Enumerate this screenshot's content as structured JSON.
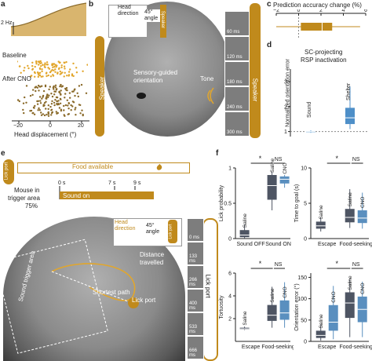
{
  "panels": {
    "a": {
      "letter": "a",
      "stim_label": "2 Hz",
      "baseline_label": "Baseline",
      "after_label": "After CNO",
      "xlabel": "Head displacement (°)",
      "xticks": [
        "−20",
        "0",
        "20"
      ]
    },
    "b": {
      "letter": "b",
      "head_direction": "Head direction",
      "angle": "45° angle",
      "speaker": "Speaker",
      "speaker_left": "Speaker",
      "speaker_right": "Speaker",
      "orientation_label": "Sensory-guided orientation",
      "tone": "Tone",
      "frames": [
        "60 ms",
        "120 ms",
        "180 ms",
        "240 ms",
        "300 ms"
      ]
    },
    "c": {
      "letter": "c",
      "title": "Prediction accuracy change (%)",
      "ticks": [
        "−2",
        "0",
        "2",
        "4",
        "6"
      ]
    },
    "d": {
      "letter": "d",
      "title_line1": "SC-projecting",
      "title_line2": "RSP inactivation",
      "ylabel": "Normalized orientation error",
      "yticks": [
        "1",
        "2",
        "3"
      ],
      "cat_sound": "Sound",
      "cat_shelter": "Shelter"
    },
    "e": {
      "letter": "e",
      "lick_port": "Lick port",
      "food_available": "Food available",
      "mouse_line1": "Mouse in",
      "mouse_line2": "trigger area",
      "pct": "75%",
      "sound_on": "Sound on",
      "t0": "0 s",
      "t7": "7 s",
      "t9": "9 s",
      "trigger_area": "Sound trigger area",
      "distance": "Distance travelled",
      "shortest": "Shortest path",
      "lick_port_label": "Lick port",
      "head_direction": "Head direction",
      "angle": "45° angle",
      "lick_port_small": "Lick port",
      "lick_port_right": "Lick port",
      "frames": [
        "0 ms",
        "133 ms",
        "266 ms",
        "400 ms",
        "533 ms",
        "666 ms"
      ]
    },
    "f": {
      "letter": "f",
      "lick_ylabel": "Lick probability",
      "lick_yticks": [
        "0",
        "0.5",
        "1"
      ],
      "saline": "Saline",
      "cno": "CNO",
      "sound_off": "Sound OFF",
      "sound_on": "Sound ON",
      "sig_star": "*",
      "ns": "NS",
      "goal_ylabel": "Time to goal (s)",
      "goal_yticks": [
        "0",
        "5",
        "10"
      ],
      "escape": "Escape",
      "food_seeking": "Food-seeking",
      "tort_ylabel": "Tortuosity",
      "tort_yticks": [
        "2",
        "4",
        "6"
      ],
      "orient_ylabel": "Orientation error (°)",
      "orient_yticks": [
        "0",
        "50",
        "100",
        "150"
      ]
    }
  },
  "colors": {
    "gold": "#c08a1c",
    "gold_light": "#e2a62b",
    "saline_dark": "#4e5563",
    "cno_blue": "#5a8fbf",
    "sound_blue": "#6aa6d8",
    "shelter_blue": "#4e8fc8"
  },
  "chart_data": [
    {
      "type": "box",
      "panel": "c",
      "title": "Prediction accuracy change (%)",
      "xlim": [
        -2,
        6
      ],
      "box": {
        "whisker_low": -2,
        "q1": 0.2,
        "median": 2.1,
        "q3": 3.0,
        "whisker_high": 5.5
      }
    },
    {
      "type": "box",
      "panel": "d",
      "title": "SC-projecting RSP inactivation",
      "ylabel": "Normalized orientation error",
      "ylim": [
        0.8,
        3.5
      ],
      "categories": [
        "Sound",
        "Shelter"
      ],
      "boxes": [
        {
          "whisker_low": 0.95,
          "q1": 0.98,
          "median": 1.0,
          "q3": 1.02,
          "whisker_high": 1.05
        },
        {
          "whisker_low": 1.1,
          "q1": 1.3,
          "median": 1.55,
          "q3": 1.95,
          "whisker_high": 2.8
        }
      ]
    },
    {
      "type": "box",
      "panel": "f-lick",
      "ylabel": "Lick probability",
      "ylim": [
        0,
        1
      ],
      "groups": [
        "Sound OFF",
        "Sound ON"
      ],
      "series": [
        "Saline",
        "CNO"
      ],
      "boxes": [
        {
          "group": "Sound OFF",
          "series": "Saline",
          "whisker_low": 0.0,
          "q1": 0.02,
          "median": 0.05,
          "q3": 0.12,
          "whisker_high": 0.2
        },
        {
          "group": "Sound ON",
          "series": "Saline",
          "whisker_low": 0.4,
          "q1": 0.55,
          "median": 0.75,
          "q3": 0.9,
          "whisker_high": 0.95
        },
        {
          "group": "Sound ON",
          "series": "CNO",
          "whisker_low": 0.72,
          "q1": 0.78,
          "median": 0.84,
          "q3": 0.88,
          "whisker_high": 0.9
        }
      ]
    },
    {
      "type": "box",
      "panel": "f-time",
      "ylabel": "Time to goal (s)",
      "ylim": [
        0,
        10
      ],
      "groups": [
        "Escape",
        "Food-seeking"
      ],
      "series": [
        "Saline",
        "CNO"
      ],
      "boxes": [
        {
          "group": "Escape",
          "series": "Saline",
          "whisker_low": 1.0,
          "q1": 1.4,
          "median": 1.8,
          "q3": 2.4,
          "whisker_high": 3.0
        },
        {
          "group": "Food-seeking",
          "series": "Saline",
          "whisker_low": 1.5,
          "q1": 2.3,
          "median": 3.0,
          "q3": 4.2,
          "whisker_high": 7.0
        },
        {
          "group": "Food-seeking",
          "series": "CNO",
          "whisker_low": 1.4,
          "q1": 2.2,
          "median": 2.9,
          "q3": 4.0,
          "whisker_high": 6.5
        }
      ]
    },
    {
      "type": "box",
      "panel": "f-tort",
      "ylabel": "Tortuosity",
      "ylim": [
        0,
        6
      ],
      "groups": [
        "Escape",
        "Food-seeking"
      ],
      "series": [
        "Saline",
        "CNO"
      ],
      "boxes": [
        {
          "group": "Escape",
          "series": "Saline",
          "whisker_low": 1.0,
          "q1": 1.05,
          "median": 1.1,
          "q3": 1.2,
          "whisker_high": 1.3
        },
        {
          "group": "Food-seeking",
          "series": "Saline",
          "whisker_low": 1.2,
          "q1": 1.8,
          "median": 2.3,
          "q3": 3.2,
          "whisker_high": 4.8
        },
        {
          "group": "Food-seeking",
          "series": "CNO",
          "whisker_low": 1.2,
          "q1": 1.9,
          "median": 2.5,
          "q3": 3.6,
          "whisker_high": 5.2
        }
      ]
    },
    {
      "type": "box",
      "panel": "f-orient",
      "ylabel": "Orientation error (°)",
      "ylim": [
        0,
        160
      ],
      "groups": [
        "Escape",
        "Food-seeking"
      ],
      "series": [
        "Saline",
        "CNO"
      ],
      "boxes": [
        {
          "group": "Escape",
          "series": "Saline",
          "whisker_low": 2,
          "q1": 8,
          "median": 14,
          "q3": 25,
          "whisker_high": 40
        },
        {
          "group": "Escape",
          "series": "CNO",
          "whisker_low": 5,
          "q1": 25,
          "median": 45,
          "q3": 85,
          "whisker_high": 130
        },
        {
          "group": "Food-seeking",
          "series": "Saline",
          "whisker_low": 10,
          "q1": 55,
          "median": 90,
          "q3": 115,
          "whisker_high": 145
        },
        {
          "group": "Food-seeking",
          "series": "CNO",
          "whisker_low": 10,
          "q1": 45,
          "median": 75,
          "q3": 105,
          "whisker_high": 140
        }
      ]
    }
  ]
}
